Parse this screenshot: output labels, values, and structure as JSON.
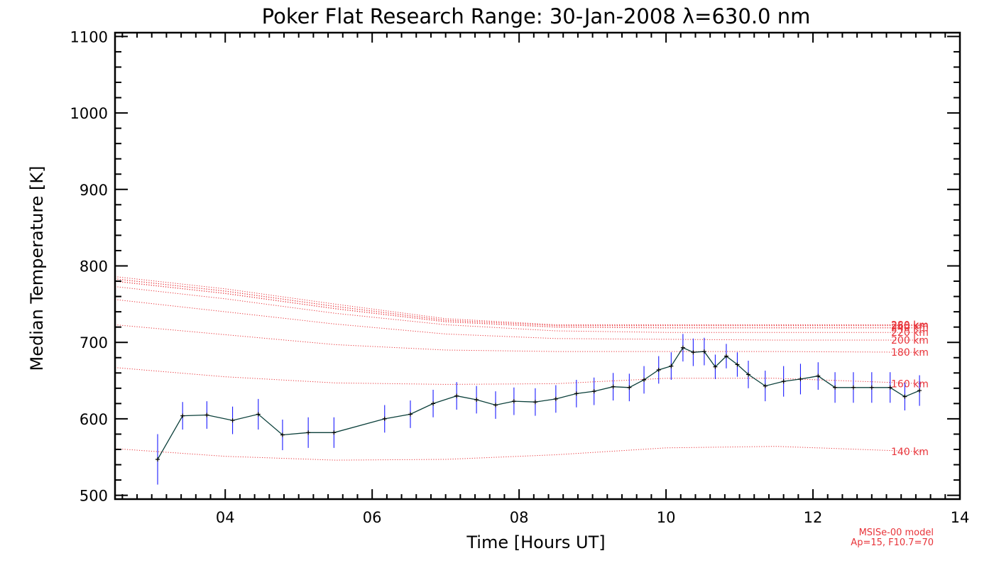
{
  "chart_data": {
    "type": "line",
    "title": "Poker Flat Research Range: 30-Jan-2008 λ=630.0 nm",
    "xlabel": "Time [Hours UT]",
    "ylabel": "Median Temperature [K]",
    "xlim": [
      2.5,
      14
    ],
    "ylim": [
      495,
      1105
    ],
    "x_ticks": [
      4,
      6,
      8,
      10,
      12,
      14
    ],
    "x_tick_labels": [
      "04",
      "06",
      "08",
      "10",
      "12",
      "14"
    ],
    "y_ticks": [
      500,
      600,
      700,
      800,
      900,
      1000,
      1100
    ],
    "y_tick_labels": [
      "500",
      "600",
      "700",
      "800",
      "900",
      "1000",
      "1100"
    ],
    "grid": false,
    "colors": {
      "measurement_line": "#0a3f3a",
      "error_bars": "#1a1aff",
      "markers": "#000000",
      "model_curves": "#e8343a"
    },
    "measurements": {
      "x": [
        3.08,
        3.42,
        3.75,
        4.1,
        4.45,
        4.78,
        5.13,
        5.48,
        6.17,
        6.52,
        6.83,
        7.15,
        7.42,
        7.68,
        7.93,
        8.22,
        8.5,
        8.78,
        9.02,
        9.28,
        9.5,
        9.7,
        9.9,
        10.07,
        10.23,
        10.37,
        10.52,
        10.67,
        10.82,
        10.97,
        11.12,
        11.35,
        11.6,
        11.83,
        12.07,
        12.3,
        12.55,
        12.8,
        13.05,
        13.25,
        13.45
      ],
      "y": [
        547,
        604,
        605,
        598,
        606,
        579,
        582,
        582,
        600,
        606,
        620,
        630,
        625,
        618,
        623,
        622,
        626,
        633,
        636,
        642,
        641,
        651,
        664,
        669,
        693,
        687,
        688,
        668,
        682,
        671,
        658,
        643,
        649,
        652,
        656,
        641,
        641,
        641,
        641,
        629,
        637
      ],
      "err": [
        33,
        18,
        18,
        18,
        20,
        20,
        20,
        20,
        18,
        18,
        18,
        18,
        18,
        18,
        18,
        18,
        18,
        18,
        18,
        18,
        18,
        18,
        18,
        18,
        18,
        18,
        18,
        16,
        16,
        16,
        18,
        20,
        20,
        20,
        18,
        20,
        20,
        20,
        20,
        18,
        20
      ]
    },
    "model_curves": [
      {
        "name": "140 km",
        "x": [
          2.5,
          4,
          5.5,
          7,
          8.5,
          10,
          11.5,
          13.5
        ],
        "values": [
          561,
          551,
          546,
          547,
          553,
          562,
          564,
          557
        ]
      },
      {
        "name": "160 km",
        "x": [
          2.5,
          4,
          5.5,
          7,
          8.5,
          10,
          11.5,
          13.5
        ],
        "values": [
          667,
          655,
          647,
          645,
          646,
          653,
          653,
          646
        ]
      },
      {
        "name": "180 km",
        "x": [
          2.5,
          4,
          5.5,
          7,
          8.5,
          10,
          11.5,
          13.5
        ],
        "values": [
          723,
          710,
          697,
          690,
          688,
          688,
          688,
          687
        ]
      },
      {
        "name": "200 km",
        "x": [
          2.5,
          4,
          5.5,
          7,
          8.5,
          10,
          11.5,
          13.5
        ],
        "values": [
          756,
          740,
          724,
          711,
          705,
          704,
          703,
          703
        ]
      },
      {
        "name": "220 km",
        "x": [
          2.5,
          4,
          5.5,
          7,
          8.5,
          10,
          11.5,
          13.5
        ],
        "values": [
          773,
          757,
          738,
          723,
          715,
          713,
          713,
          713
        ]
      },
      {
        "name": "240 km",
        "x": [
          2.5,
          4,
          5.5,
          7,
          8.5,
          10,
          11.5,
          13.5
        ],
        "values": [
          780,
          764,
          744,
          727,
          720,
          719,
          719,
          719
        ]
      },
      {
        "name": "260 km",
        "x": [
          2.5,
          4,
          5.5,
          7,
          8.5,
          10,
          11.5,
          13.5
        ],
        "values": [
          783,
          767,
          747,
          729,
          722,
          722,
          722,
          722
        ]
      },
      {
        "name": "280 km",
        "x": [
          2.5,
          4,
          5.5,
          7,
          8.5,
          10,
          11.5,
          13.5
        ],
        "values": [
          786,
          770,
          750,
          731,
          723,
          723,
          723,
          723
        ]
      }
    ],
    "model_note": [
      "MSISe-00 model",
      "Ap=15, F10.7=70"
    ]
  }
}
